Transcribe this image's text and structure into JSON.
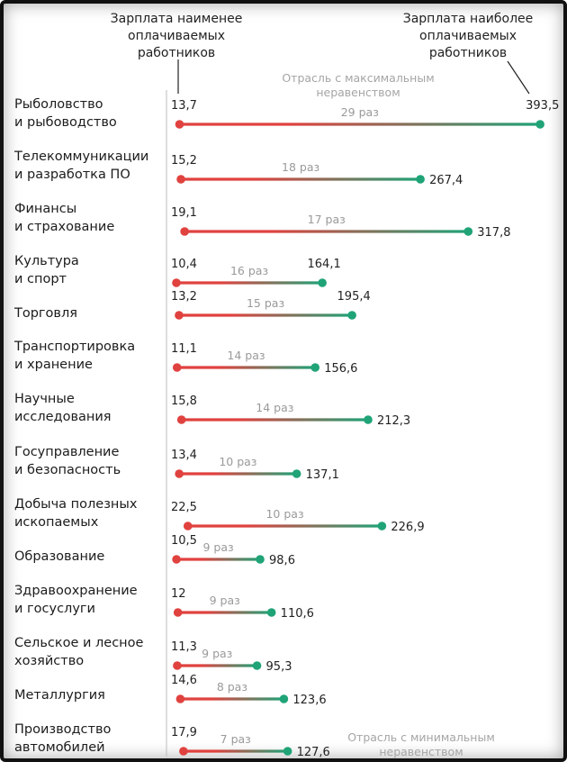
{
  "header": {
    "min_label": [
      "Зарплата наименее",
      "оплачиваемых",
      "работников"
    ],
    "max_label": [
      "Зарплата наиболее",
      "оплачиваемых",
      "работников"
    ]
  },
  "annotations": {
    "max_inequality": [
      "Отрасль с максимальным",
      "неравенством"
    ],
    "min_inequality": [
      "Отрасль с минимальным",
      "неравенством"
    ]
  },
  "colors": {
    "low": "#e0423f",
    "high": "#1fa377",
    "axis": "#bdbdbd"
  },
  "chart_data": {
    "type": "dumbbell",
    "x_units": "thousand",
    "xlim": [
      0,
      400
    ],
    "categories": [
      [
        "Рыболовство",
        "и рыбоводство"
      ],
      [
        "Телекоммуникации",
        "и разработка ПО"
      ],
      [
        "Финансы",
        "и страхование"
      ],
      [
        "Культура",
        "и спорт"
      ],
      [
        "Торговля"
      ],
      [
        "Транспортировка",
        "и хранение"
      ],
      [
        "Научные",
        "исследования"
      ],
      [
        "Госуправление",
        "и безопасность"
      ],
      [
        "Добыча полезных",
        "ископаемых"
      ],
      [
        "Образование"
      ],
      [
        "Здравоохранение",
        "и госуслуги"
      ],
      [
        "Сельское и лесное",
        "хозяйство"
      ],
      [
        "Металлургия"
      ],
      [
        "Производство",
        "автомобилей"
      ]
    ],
    "series": [
      {
        "name": "Зарплата наименее оплачиваемых работников",
        "values": [
          13.7,
          15.2,
          19.1,
          10.4,
          13.2,
          11.1,
          15.8,
          13.4,
          22.5,
          10.5,
          12,
          11.3,
          14.6,
          17.9
        ],
        "labels": [
          "13,7",
          "15,2",
          "19,1",
          "10,4",
          "13,2",
          "11,1",
          "15,8",
          "13,4",
          "22,5",
          "10,5",
          "12",
          "11,3",
          "14,6",
          "17,9"
        ]
      },
      {
        "name": "Зарплата наиболее оплачиваемых работников",
        "values": [
          393.5,
          267.4,
          317.8,
          164.1,
          195.4,
          156.6,
          212.3,
          137.1,
          226.9,
          98.6,
          110.6,
          95.3,
          123.6,
          127.6
        ],
        "labels": [
          "393,5",
          "267,4",
          "317,8",
          "164,1",
          "195,4",
          "156,6",
          "212,3",
          "137,1",
          "226,9",
          "98,6",
          "110,6",
          "95,3",
          "123,6",
          "127,6"
        ]
      }
    ],
    "ratios": [
      "29 раз",
      "18 раз",
      "17 раз",
      "16 раз",
      "15 раз",
      "14 раз",
      "14 раз",
      "10 раз",
      "10 раз",
      "9 раз",
      "9 раз",
      "9 раз",
      "8 раз",
      "7 раз"
    ]
  }
}
